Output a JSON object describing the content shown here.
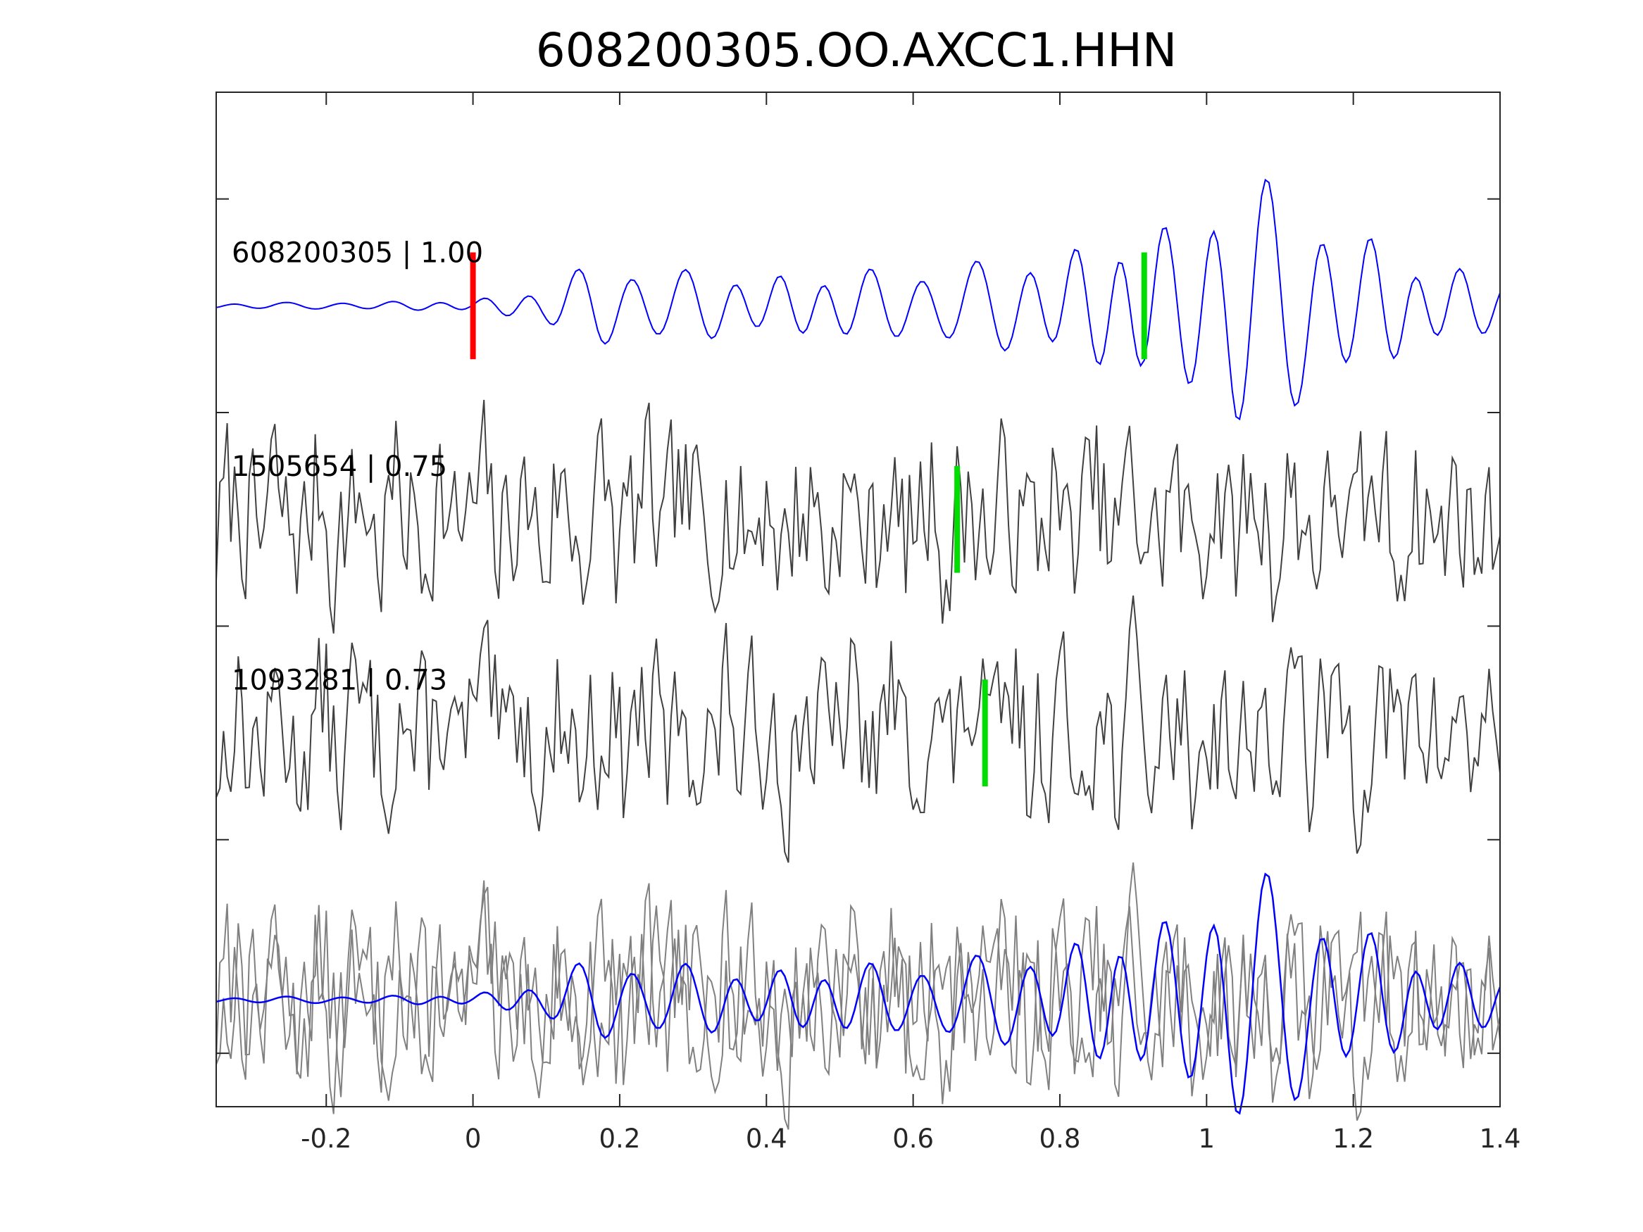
{
  "chart_data": {
    "type": "line",
    "title": "608200305.OO.AXCC1.HHN",
    "xlabel": "",
    "ylabel": "",
    "xlim": [
      -0.35,
      1.4
    ],
    "x_ticks": [
      -0.2,
      0,
      0.2,
      0.4,
      0.6,
      0.8,
      1,
      1.2,
      1.4
    ],
    "x_tick_labels": [
      "-0.2",
      "0",
      "0.2",
      "0.4",
      "0.6",
      "0.8",
      "1",
      "1.2",
      "1.4"
    ],
    "ylim": [
      0,
      9.5
    ],
    "y_ticks": [
      0.5,
      2.5,
      4.5,
      6.5,
      8.5
    ],
    "grid": false,
    "sample_interval": 0.005,
    "traces": [
      {
        "label": "608200305 | 1.00",
        "baseline": 7.5,
        "color": "#0000ff",
        "kind": "template",
        "seed": 1,
        "markers": [
          {
            "x": 0.0,
            "color": "#ff0000"
          },
          {
            "x": 0.915,
            "color": "#00dd00"
          }
        ]
      },
      {
        "label": "1505654 | 0.75",
        "baseline": 5.5,
        "color": "#404040",
        "kind": "noise",
        "seed": 7,
        "markers": [
          {
            "x": 0.66,
            "color": "#00dd00"
          }
        ]
      },
      {
        "label": "1093281 | 0.73",
        "baseline": 3.5,
        "color": "#404040",
        "kind": "noise",
        "seed": 13,
        "markers": [
          {
            "x": 0.698,
            "color": "#00dd00"
          }
        ]
      }
    ],
    "overlay": {
      "baseline": 1.0,
      "noise_color": "#808080",
      "template_color": "#0000ff"
    },
    "template_envelope": [
      {
        "x": -0.35,
        "a": 0.02
      },
      {
        "x": 0.0,
        "a": 0.04
      },
      {
        "x": 0.1,
        "a": 0.15
      },
      {
        "x": 0.17,
        "a": 0.35
      },
      {
        "x": 0.4,
        "a": 0.22
      },
      {
        "x": 0.6,
        "a": 0.3
      },
      {
        "x": 0.8,
        "a": 0.4
      },
      {
        "x": 0.88,
        "a": 0.55
      },
      {
        "x": 0.95,
        "a": 0.6
      },
      {
        "x": 1.04,
        "a": 1.1
      },
      {
        "x": 1.1,
        "a": 0.9
      },
      {
        "x": 1.2,
        "a": 0.6
      },
      {
        "x": 1.3,
        "a": 0.3
      },
      {
        "x": 1.4,
        "a": 0.25
      }
    ]
  }
}
